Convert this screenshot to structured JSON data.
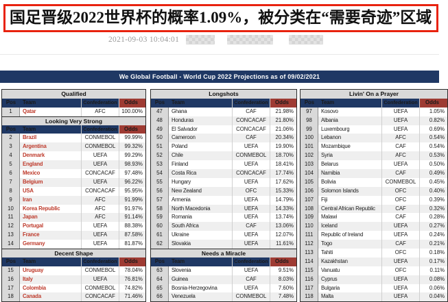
{
  "headline": {
    "text": "国足晋级2022世界杯的概率1.09%，被分类在“需要奇迹”区域"
  },
  "meta": {
    "date": "2021-09-03 10:04:01",
    "redacted_blocks": 3
  },
  "colors": {
    "accent_red": "#e8220e",
    "header_navy": "#1f3864",
    "odds_maroon": "#9e3b33",
    "section_gray": "#d9d9d9",
    "team_red": "#be3a2b",
    "row_stripe": "#efefef"
  },
  "projection_table": {
    "title": "We Global Football - World Cup 2022 Projections as of 09/02/2021",
    "columns": [
      "Pos",
      "Team",
      "Confederation",
      "Odds"
    ],
    "tables": [
      {
        "name": "qualified-column",
        "team_red": true,
        "sections": [
          {
            "title": "Qualified",
            "rows": [
              [
                "1",
                "Qatar",
                "AFC",
                "100.00%"
              ]
            ]
          },
          {
            "title": "Looking Very Strong",
            "rows": [
              [
                "2",
                "Brazil",
                "CONMEBOL",
                "99.99%"
              ],
              [
                "3",
                "Argentina",
                "CONMEBOL",
                "99.32%"
              ],
              [
                "4",
                "Denmark",
                "UEFA",
                "99.29%"
              ],
              [
                "5",
                "England",
                "UEFA",
                "98.93%"
              ],
              [
                "6",
                "Mexico",
                "CONCACAF",
                "97.48%"
              ],
              [
                "7",
                "Belgium",
                "UEFA",
                "96.22%"
              ],
              [
                "8",
                "USA",
                "CONCACAF",
                "95.95%"
              ],
              [
                "9",
                "Iran",
                "AFC",
                "91.99%"
              ],
              [
                "10",
                "Korea Republic",
                "AFC",
                "91.97%"
              ],
              [
                "11",
                "Japan",
                "AFC",
                "91.14%"
              ],
              [
                "12",
                "Portugal",
                "UEFA",
                "88.38%"
              ],
              [
                "13",
                "France",
                "UEFA",
                "87.58%"
              ],
              [
                "14",
                "Germany",
                "UEFA",
                "81.87%"
              ]
            ]
          },
          {
            "title": "Decent Shape",
            "rows": [
              [
                "15",
                "Uruguay",
                "CONMEBOL",
                "78.04%"
              ],
              [
                "16",
                "Italy",
                "UEFA",
                "76.81%"
              ],
              [
                "17",
                "Colombia",
                "CONMEBOL",
                "74.82%"
              ],
              [
                "18",
                "Canada",
                "CONCACAF",
                "71.46%"
              ]
            ]
          }
        ]
      },
      {
        "name": "longshots-column",
        "team_red": false,
        "sections": [
          {
            "title": "Longshots",
            "rows": [
              [
                "47",
                "Ghana",
                "CAF",
                "21.98%"
              ],
              [
                "48",
                "Honduras",
                "CONCACAF",
                "21.80%"
              ],
              [
                "49",
                "El Salvador",
                "CONCACAF",
                "21.06%"
              ],
              [
                "50",
                "Cameroon",
                "CAF",
                "20.34%"
              ],
              [
                "51",
                "Poland",
                "UEFA",
                "19.90%"
              ],
              [
                "52",
                "Chile",
                "CONMEBOL",
                "18.70%"
              ],
              [
                "53",
                "Finland",
                "UEFA",
                "18.41%"
              ],
              [
                "54",
                "Costa Rica",
                "CONCACAF",
                "17.74%"
              ],
              [
                "55",
                "Hungary",
                "UEFA",
                "17.62%"
              ],
              [
                "56",
                "New Zealand",
                "OFC",
                "15.33%"
              ],
              [
                "57",
                "Armenia",
                "UEFA",
                "14.79%"
              ],
              [
                "58",
                "North Macedonia",
                "UEFA",
                "14.33%"
              ],
              [
                "59",
                "Romania",
                "UEFA",
                "13.74%"
              ],
              [
                "60",
                "South Africa",
                "CAF",
                "13.06%"
              ],
              [
                "61",
                "Ukraine",
                "UEFA",
                "12.07%"
              ],
              [
                "62",
                "Slovakia",
                "UEFA",
                "11.61%"
              ]
            ]
          },
          {
            "title": "Needs a Miracle",
            "rows": [
              [
                "63",
                "Slovenia",
                "UEFA",
                "9.51%"
              ],
              [
                "64",
                "Guinea",
                "CAF",
                "8.03%"
              ],
              [
                "65",
                "Bosnia-Herzegovina",
                "UEFA",
                "7.60%"
              ],
              [
                "66",
                "Venezuela",
                "CONMEBOL",
                "7.48%"
              ]
            ]
          }
        ]
      },
      {
        "name": "livin-on-a-prayer-column",
        "team_red": false,
        "sections": [
          {
            "title": "Livin' On a Prayer",
            "rows": [
              [
                "97",
                "Kosovo",
                "UEFA",
                "1.05%"
              ],
              [
                "98",
                "Albania",
                "UEFA",
                "0.82%"
              ],
              [
                "99",
                "Luxembourg",
                "UEFA",
                "0.69%"
              ],
              [
                "100",
                "Lebanon",
                "AFC",
                "0.54%"
              ],
              [
                "101",
                "Mozambique",
                "CAF",
                "0.54%"
              ],
              [
                "102",
                "Syria",
                "AFC",
                "0.53%"
              ],
              [
                "103",
                "Belarus",
                "UEFA",
                "0.50%"
              ],
              [
                "104",
                "Namibia",
                "CAF",
                "0.49%"
              ],
              [
                "105",
                "Bolivia",
                "CONMEBOL",
                "0.45%"
              ],
              [
                "106",
                "Solomon Islands",
                "OFC",
                "0.40%"
              ],
              [
                "107",
                "Fiji",
                "OFC",
                "0.39%"
              ],
              [
                "108",
                "Central African Republic",
                "CAF",
                "0.32%"
              ],
              [
                "109",
                "Malawi",
                "CAF",
                "0.28%"
              ],
              [
                "110",
                "Iceland",
                "UEFA",
                "0.27%"
              ],
              [
                "111",
                "Republic of Ireland",
                "UEFA",
                "0.24%"
              ],
              [
                "112",
                "Togo",
                "CAF",
                "0.21%"
              ],
              [
                "113",
                "Tahiti",
                "OFC",
                "0.18%"
              ],
              [
                "114",
                "Kazakhstan",
                "UEFA",
                "0.17%"
              ],
              [
                "115",
                "Vanuatu",
                "OFC",
                "0.11%"
              ],
              [
                "116",
                "Cyprus",
                "UEFA",
                "0.08%"
              ],
              [
                "117",
                "Bulgaria",
                "UEFA",
                "0.06%"
              ],
              [
                "118",
                "Malta",
                "UEFA",
                "0.04%"
              ]
            ]
          }
        ]
      }
    ]
  }
}
